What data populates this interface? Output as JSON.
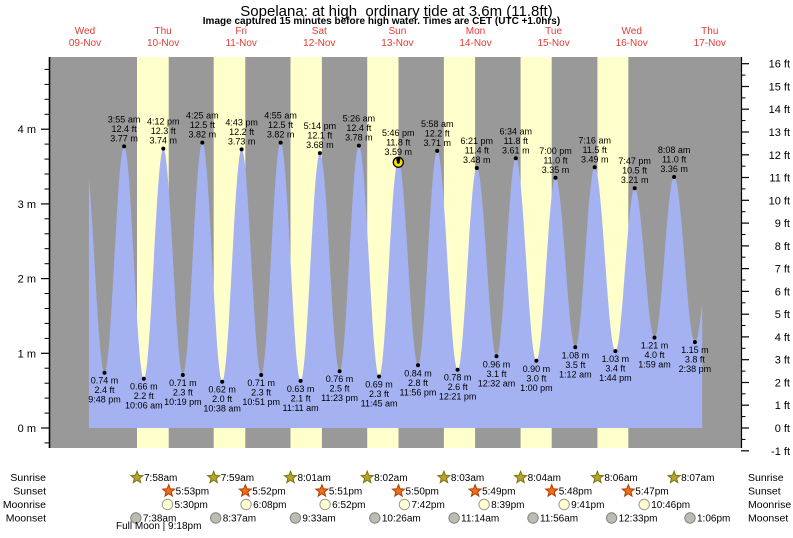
{
  "title": "Sopelana: at high  ordinary tide at 3.6m (11.8ft)",
  "subtitle": "Image captured 15 minutes before high water. Times are CET (UTC +1.0hrs)",
  "full_moon_note": "Full Moon | 9:18pm",
  "colors": {
    "day_label": "#e53935",
    "plot_bg": "#999999",
    "daylight_band": "#ffffcc",
    "tide_fill": "#a5b2f2",
    "axis": "#000000",
    "marker_fill": "#ffdf00",
    "sunrise_fill": "#b4a62c",
    "sunrise_stroke": "#7d7415",
    "sunset_fill": "#e8711f",
    "sunset_stroke": "#b23c00",
    "moonrise_fill": "#ffffd6",
    "moonrise_stroke": "#9a9a8a",
    "moonset_fill": "#bcbcb2",
    "moonset_stroke": "#83837a"
  },
  "chart_data": {
    "type": "area",
    "title": "Sopelana: at high  ordinary tide at 3.6m (11.8ft)",
    "subtitle": "Image captured 15 minutes before high water. Times are CET (UTC +1.0hrs)",
    "x_days": [
      {
        "dow": "Wed",
        "date": "09-Nov"
      },
      {
        "dow": "Thu",
        "date": "10-Nov"
      },
      {
        "dow": "Fri",
        "date": "11-Nov"
      },
      {
        "dow": "Sat",
        "date": "12-Nov"
      },
      {
        "dow": "Sun",
        "date": "13-Nov"
      },
      {
        "dow": "Mon",
        "date": "14-Nov"
      },
      {
        "dow": "Tue",
        "date": "15-Nov"
      },
      {
        "dow": "Wed",
        "date": "16-Nov"
      },
      {
        "dow": "Thu",
        "date": "17-Nov"
      }
    ],
    "y_left": {
      "unit": "m",
      "major_ticks": [
        0,
        1,
        2,
        3,
        4
      ],
      "minor_step_m": 0.2,
      "tick_suffix": " m"
    },
    "y_right": {
      "unit": "ft",
      "tick_min": -1,
      "tick_max": 16,
      "minor_step_ft": 0.5,
      "tick_suffix": " ft"
    },
    "visible_range_hours": [
      16.72,
      209.2
    ],
    "curve_boundaries": {
      "start": {
        "t": 15.5,
        "m": 3.7
      },
      "end": {
        "t": 213.5,
        "m": 3.3
      }
    },
    "tide_events": [
      {
        "t": 21.8,
        "type": "low",
        "m": 0.74,
        "labels": [
          "0.74 m",
          "2.4 ft",
          "9:48 pm"
        ]
      },
      {
        "t": 27.9167,
        "type": "high",
        "m": 3.77,
        "labels": [
          "3:55 am",
          "12.4 ft",
          "3.77 m"
        ]
      },
      {
        "t": 34.1,
        "type": "low",
        "m": 0.66,
        "labels": [
          "0.66 m",
          "2.2 ft",
          "10:06 am"
        ]
      },
      {
        "t": 40.2,
        "type": "high",
        "m": 3.74,
        "labels": [
          "4:12 pm",
          "12.3 ft",
          "3.74 m"
        ]
      },
      {
        "t": 46.3167,
        "type": "low",
        "m": 0.71,
        "labels": [
          "0.71 m",
          "2.3 ft",
          "10:19 pm"
        ]
      },
      {
        "t": 52.4167,
        "type": "high",
        "m": 3.82,
        "labels": [
          "4:25 am",
          "12.5 ft",
          "3.82 m"
        ]
      },
      {
        "t": 58.6333,
        "type": "low",
        "m": 0.62,
        "labels": [
          "0.62 m",
          "2.0 ft",
          "10:38 am"
        ]
      },
      {
        "t": 64.7167,
        "type": "high",
        "m": 3.73,
        "labels": [
          "4:43 pm",
          "12.2 ft",
          "3.73 m"
        ]
      },
      {
        "t": 70.85,
        "type": "low",
        "m": 0.71,
        "labels": [
          "0.71 m",
          "2.3 ft",
          "10:51 pm"
        ]
      },
      {
        "t": 76.9167,
        "type": "high",
        "m": 3.82,
        "labels": [
          "4:55 am",
          "12.5 ft",
          "3.82 m"
        ]
      },
      {
        "t": 83.1833,
        "type": "low",
        "m": 0.63,
        "labels": [
          "0.63 m",
          "2.1 ft",
          "11:11 am"
        ]
      },
      {
        "t": 89.2333,
        "type": "high",
        "m": 3.68,
        "labels": [
          "5:14 pm",
          "12.1 ft",
          "3.68 m"
        ]
      },
      {
        "t": 95.3833,
        "type": "low",
        "m": 0.76,
        "labels": [
          "0.76 m",
          "2.5 ft",
          "11:23 pm"
        ]
      },
      {
        "t": 101.4333,
        "type": "high",
        "m": 3.78,
        "labels": [
          "5:26 am",
          "12.4 ft",
          "3.78 m"
        ]
      },
      {
        "t": 107.75,
        "type": "low",
        "m": 0.69,
        "labels": [
          "0.69 m",
          "2.3 ft",
          "11:45 am"
        ]
      },
      {
        "t": 113.7667,
        "type": "high",
        "m": 3.59,
        "labels": [
          "5:46 pm",
          "11.8 ft",
          "3.59 m"
        ]
      },
      {
        "t": 119.9333,
        "type": "low",
        "m": 0.84,
        "labels": [
          "0.84 m",
          "2.8 ft",
          "11:56 pm"
        ]
      },
      {
        "t": 125.9667,
        "type": "high",
        "m": 3.71,
        "labels": [
          "5:58 am",
          "12.2 ft",
          "3.71 m"
        ]
      },
      {
        "t": 132.35,
        "type": "low",
        "m": 0.78,
        "labels": [
          "0.78 m",
          "2.6 ft",
          "12:21 pm"
        ]
      },
      {
        "t": 138.35,
        "type": "high",
        "m": 3.48,
        "labels": [
          "6:21 pm",
          "11.4 ft",
          "3.48 m"
        ]
      },
      {
        "t": 144.5333,
        "type": "low",
        "m": 0.96,
        "labels": [
          "0.96 m",
          "3.1 ft",
          "12:32 am"
        ]
      },
      {
        "t": 150.5667,
        "type": "high",
        "m": 3.61,
        "labels": [
          "6:34 am",
          "11.8 ft",
          "3.61 m"
        ]
      },
      {
        "t": 157.0,
        "type": "low",
        "m": 0.9,
        "labels": [
          "0.90 m",
          "3.0 ft",
          "1:00 pm"
        ]
      },
      {
        "t": 163.0,
        "type": "high",
        "m": 3.35,
        "labels": [
          "7:00 pm",
          "11.0 ft",
          "3.35 m"
        ]
      },
      {
        "t": 169.2,
        "type": "low",
        "m": 1.08,
        "labels": [
          "1.08 m",
          "3.5 ft",
          "1:12 am"
        ]
      },
      {
        "t": 175.2667,
        "type": "high",
        "m": 3.49,
        "labels": [
          "7:16 am",
          "11.5 ft",
          "3.49 m"
        ]
      },
      {
        "t": 181.7333,
        "type": "low",
        "m": 1.03,
        "labels": [
          "1.03 m",
          "3.4 ft",
          "1:44 pm"
        ]
      },
      {
        "t": 187.7833,
        "type": "high",
        "m": 3.21,
        "labels": [
          "7:47 pm",
          "10.5 ft",
          "3.21 m"
        ]
      },
      {
        "t": 193.9833,
        "type": "low",
        "m": 1.21,
        "labels": [
          "1.21 m",
          "4.0 ft",
          "1:59 am"
        ]
      },
      {
        "t": 200.1333,
        "type": "high",
        "m": 3.36,
        "labels": [
          "8:08 am",
          "11.0 ft",
          "3.36 m"
        ]
      },
      {
        "t": 206.6333,
        "type": "low",
        "m": 1.15,
        "labels": [
          "1.15 m",
          "3.8 ft",
          "2:38 pm"
        ]
      }
    ],
    "current_marker_event_index": 15,
    "daylight_day_indices": [
      1,
      2,
      3,
      4,
      5,
      6,
      7
    ],
    "sun_moon": {
      "rows": [
        {
          "key": "sunrise",
          "label": "Sunrise",
          "icon": "star",
          "entries": [
            {
              "day": 1,
              "time": "7:58am"
            },
            {
              "day": 2,
              "time": "7:59am"
            },
            {
              "day": 3,
              "time": "8:01am"
            },
            {
              "day": 4,
              "time": "8:02am"
            },
            {
              "day": 5,
              "time": "8:03am"
            },
            {
              "day": 6,
              "time": "8:04am"
            },
            {
              "day": 7,
              "time": "8:06am"
            },
            {
              "day": 8,
              "time": "8:07am"
            }
          ]
        },
        {
          "key": "sunset",
          "label": "Sunset",
          "icon": "star",
          "entries": [
            {
              "day": 1,
              "time": "5:53pm"
            },
            {
              "day": 2,
              "time": "5:52pm"
            },
            {
              "day": 3,
              "time": "5:51pm"
            },
            {
              "day": 4,
              "time": "5:50pm"
            },
            {
              "day": 5,
              "time": "5:49pm"
            },
            {
              "day": 6,
              "time": "5:48pm"
            },
            {
              "day": 7,
              "time": "5:47pm"
            }
          ]
        },
        {
          "key": "moonrise",
          "label": "Moonrise",
          "icon": "circle",
          "entries": [
            {
              "day": 1,
              "time": "5:30pm"
            },
            {
              "day": 2,
              "time": "6:08pm"
            },
            {
              "day": 3,
              "time": "6:52pm"
            },
            {
              "day": 4,
              "time": "7:42pm"
            },
            {
              "day": 5,
              "time": "8:39pm"
            },
            {
              "day": 6,
              "time": "9:41pm"
            },
            {
              "day": 7,
              "time": "10:46pm"
            }
          ]
        },
        {
          "key": "moonset",
          "label": "Moonset",
          "icon": "circle",
          "entries": [
            {
              "day": 1,
              "time": "7:38am"
            },
            {
              "day": 2,
              "time": "8:37am"
            },
            {
              "day": 3,
              "time": "9:33am"
            },
            {
              "day": 4,
              "time": "10:26am"
            },
            {
              "day": 5,
              "time": "11:14am"
            },
            {
              "day": 6,
              "time": "11:56am"
            },
            {
              "day": 7,
              "time": "12:33pm"
            },
            {
              "day": 8,
              "time": "1:06pm"
            }
          ]
        }
      ],
      "full_moon_note": "Full Moon | 9:18pm"
    }
  }
}
